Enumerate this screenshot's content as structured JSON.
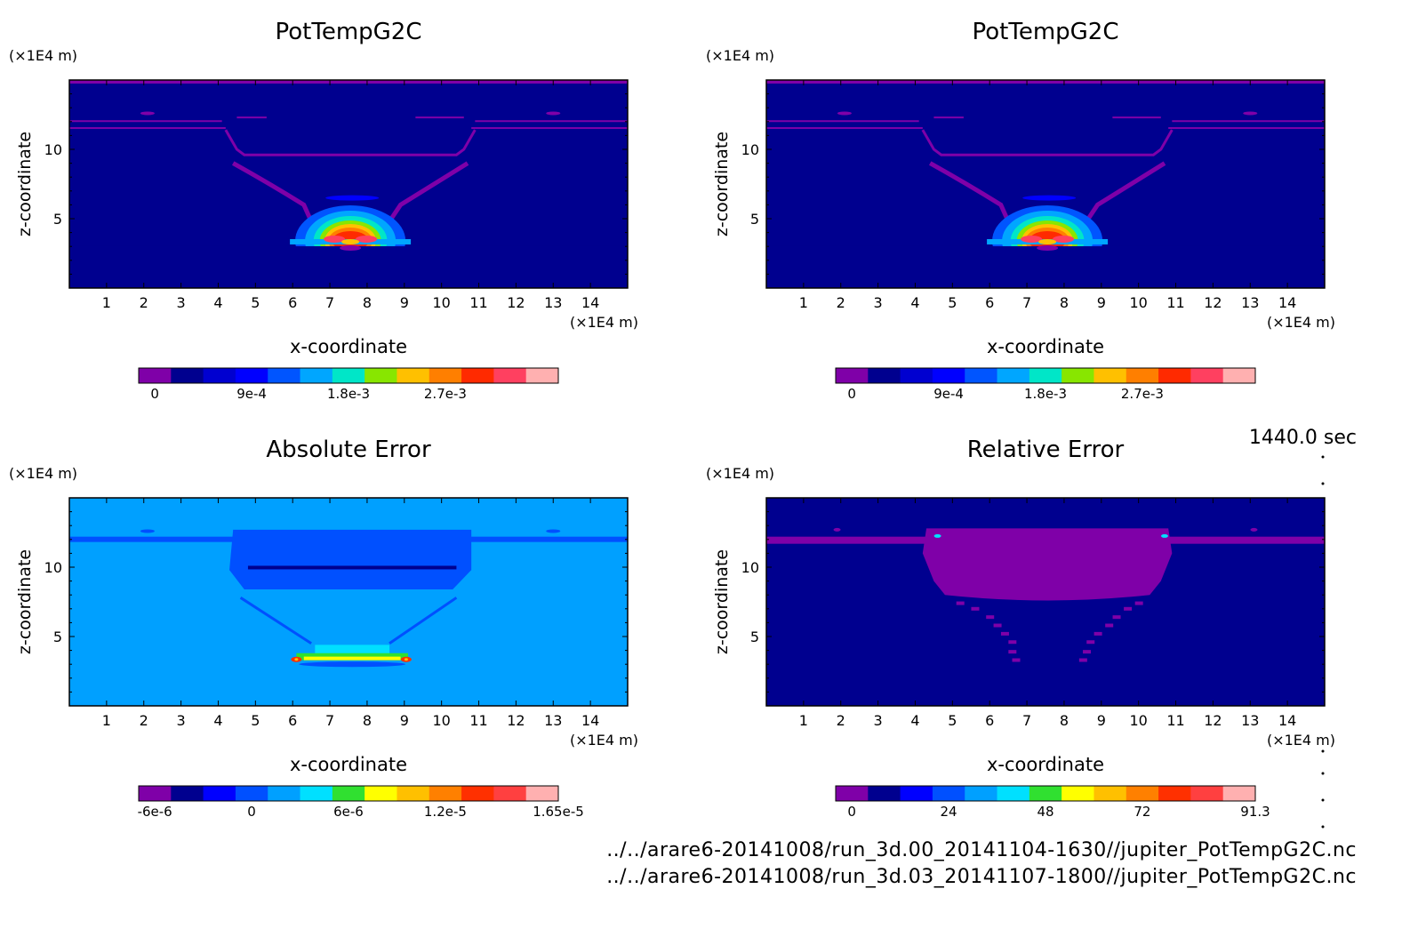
{
  "chart_data": [
    {
      "type": "heatmap",
      "title": "PotTempG2C",
      "xlabel": "x-coordinate",
      "ylabel": "z-coordinate",
      "x_unit": "(×1E4 m)",
      "y_unit": "(×1E4 m)",
      "xlim": [
        0,
        15
      ],
      "ylim": [
        0,
        15
      ],
      "x_ticks": [
        1,
        2,
        3,
        4,
        5,
        6,
        7,
        8,
        9,
        10,
        11,
        12,
        13,
        14
      ],
      "y_ticks": [
        5,
        10
      ],
      "colorbar": {
        "colors": [
          "#7f00a8",
          "#00008f",
          "#0000d0",
          "#0000ff",
          "#0055ff",
          "#00a6ff",
          "#00e6c8",
          "#88e600",
          "#ffc000",
          "#ff7f00",
          "#ff2a00",
          "#ff4060",
          "#ffb0b0"
        ],
        "tick_labels": [
          "0",
          "9e-4",
          "1.8e-3",
          "2.7e-3"
        ]
      },
      "field": "potential_temperature_plume"
    },
    {
      "type": "heatmap",
      "title": "PotTempG2C",
      "xlabel": "x-coordinate",
      "ylabel": "z-coordinate",
      "x_unit": "(×1E4 m)",
      "y_unit": "(×1E4 m)",
      "xlim": [
        0,
        15
      ],
      "ylim": [
        0,
        15
      ],
      "x_ticks": [
        1,
        2,
        3,
        4,
        5,
        6,
        7,
        8,
        9,
        10,
        11,
        12,
        13,
        14
      ],
      "y_ticks": [
        5,
        10
      ],
      "colorbar": {
        "colors": [
          "#7f00a8",
          "#00008f",
          "#0000d0",
          "#0000ff",
          "#0055ff",
          "#00a6ff",
          "#00e6c8",
          "#88e600",
          "#ffc000",
          "#ff7f00",
          "#ff2a00",
          "#ff4060",
          "#ffb0b0"
        ],
        "tick_labels": [
          "0",
          "9e-4",
          "1.8e-3",
          "2.7e-3"
        ]
      },
      "field": "potential_temperature_plume"
    },
    {
      "type": "heatmap",
      "title": "Absolute Error",
      "xlabel": "x-coordinate",
      "ylabel": "z-coordinate",
      "x_unit": "(×1E4 m)",
      "y_unit": "(×1E4 m)",
      "xlim": [
        0,
        15
      ],
      "ylim": [
        0,
        15
      ],
      "x_ticks": [
        1,
        2,
        3,
        4,
        5,
        6,
        7,
        8,
        9,
        10,
        11,
        12,
        13,
        14
      ],
      "y_ticks": [
        5,
        10
      ],
      "colorbar": {
        "colors": [
          "#7f00a8",
          "#00008f",
          "#0000ff",
          "#0050ff",
          "#00a0ff",
          "#00e0ff",
          "#30e030",
          "#ffff00",
          "#ffc000",
          "#ff8000",
          "#ff3000",
          "#ff4040",
          "#ffb0b0"
        ],
        "tick_labels": [
          "-6e-6",
          "0",
          "6e-6",
          "1.2e-5",
          "1.65e-5"
        ]
      },
      "field": "absolute_error"
    },
    {
      "type": "heatmap",
      "title": "Relative Error",
      "xlabel": "x-coordinate",
      "ylabel": "z-coordinate",
      "x_unit": "(×1E4 m)",
      "y_unit": "(×1E4 m)",
      "xlim": [
        0,
        15
      ],
      "ylim": [
        0,
        15
      ],
      "x_ticks": [
        1,
        2,
        3,
        4,
        5,
        6,
        7,
        8,
        9,
        10,
        11,
        12,
        13,
        14
      ],
      "y_ticks": [
        5,
        10
      ],
      "colorbar": {
        "colors": [
          "#7f00a8",
          "#00008f",
          "#0000ff",
          "#0050ff",
          "#00a0ff",
          "#00e0ff",
          "#30e030",
          "#ffff00",
          "#ffc000",
          "#ff8000",
          "#ff3000",
          "#ff4040",
          "#ffb0b0"
        ],
        "tick_labels": [
          "0",
          "24",
          "48",
          "72",
          "91.3"
        ]
      },
      "field": "relative_error"
    }
  ],
  "time_label": "1440.0 sec",
  "footer": {
    "file1": "../../arare6-20141008/run_3d.00_20141104-1630//jupiter_PotTempG2C.nc",
    "file2": "../../arare6-20141008/run_3d.03_20141107-1800//jupiter_PotTempG2C.nc"
  }
}
